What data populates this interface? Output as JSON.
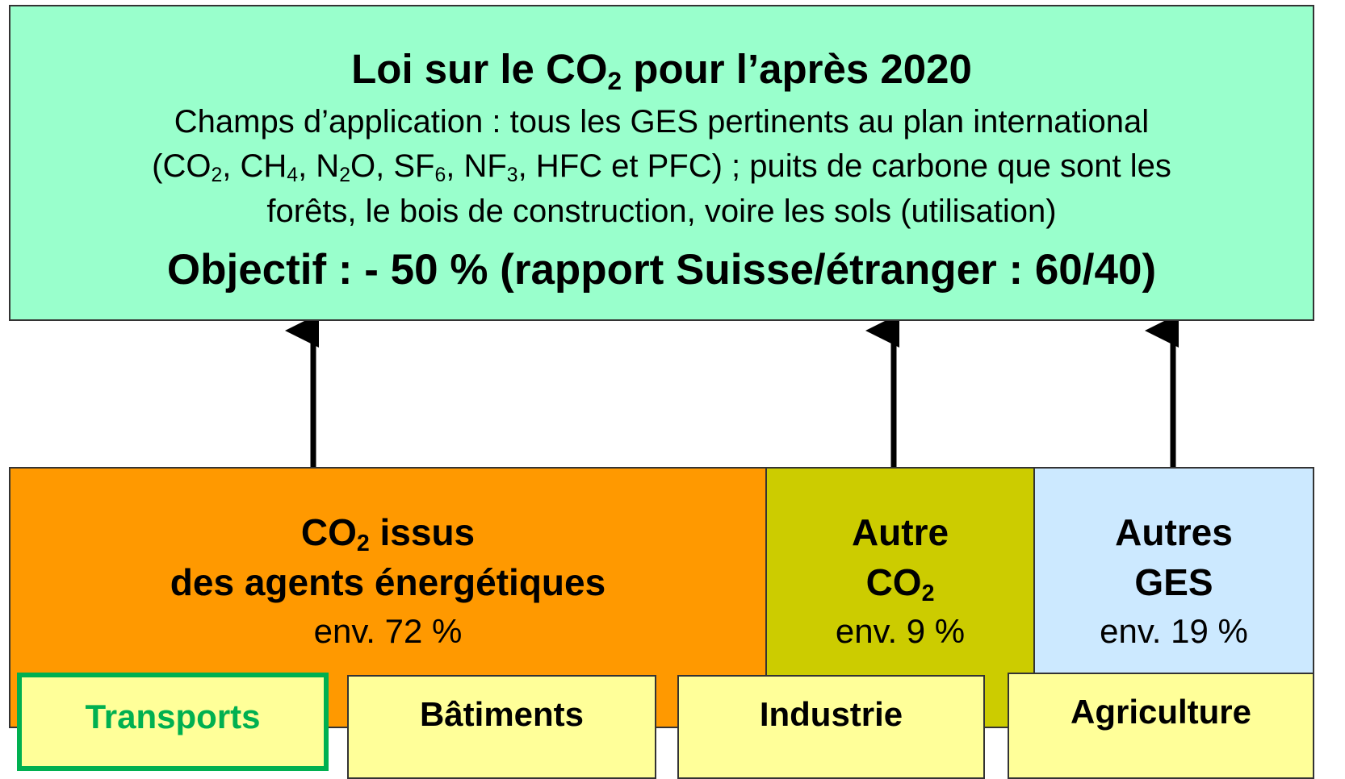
{
  "header": {
    "title": [
      {
        "text": "Loi sur le CO"
      },
      {
        "sub": "2"
      },
      {
        "text": " pour l’après 2020"
      }
    ],
    "lines": [
      [
        {
          "text": "Champs d’application : tous les GES pertinents au plan international"
        }
      ],
      [
        {
          "text": "(CO"
        },
        {
          "sub": "2"
        },
        {
          "text": ", CH"
        },
        {
          "sub": "4"
        },
        {
          "text": ", N"
        },
        {
          "sub": "2"
        },
        {
          "text": "O, SF"
        },
        {
          "sub": "6"
        },
        {
          "text": ", NF"
        },
        {
          "sub": "3"
        },
        {
          "text": ", HFC et PFC) ; puits de carbone que sont les"
        }
      ],
      [
        {
          "text": "forêts, le bois de construction, voire les sols (utilisation)"
        }
      ]
    ],
    "objective": "Objectif : - 50 % (rapport Suisse/étranger : 60/40)"
  },
  "categories": [
    {
      "title": [
        [
          {
            "text": "CO"
          },
          {
            "sub": "2"
          },
          {
            "text": " issus"
          }
        ],
        [
          {
            "text": "des agents énergétiques"
          }
        ]
      ],
      "share": "env. 72 %"
    },
    {
      "title": [
        [
          {
            "text": "Autre"
          }
        ],
        [
          {
            "text": "CO"
          },
          {
            "sub": "2"
          }
        ]
      ],
      "share": "env. 9 %"
    },
    {
      "title": [
        [
          {
            "text": "Autres"
          }
        ],
        [
          {
            "text": "GES"
          }
        ]
      ],
      "share": "env. 19 %"
    }
  ],
  "sectors": [
    "Transports",
    "Bâtiments",
    "Industrie",
    "Agriculture"
  ]
}
